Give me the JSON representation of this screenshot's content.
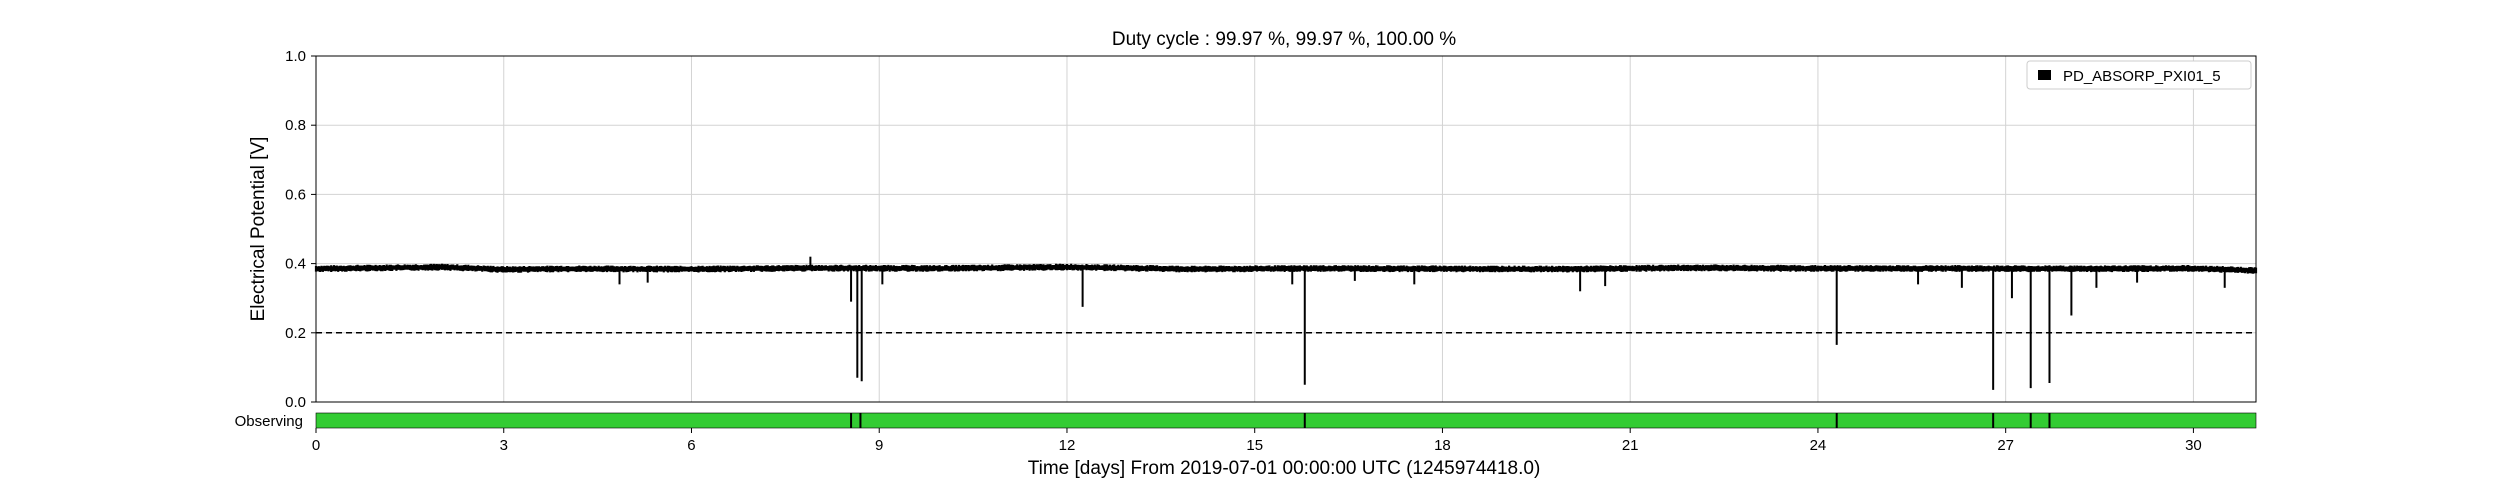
{
  "chart_data": {
    "type": "line",
    "title": "Duty cycle : 99.97 %, 99.97 %, 100.00 %",
    "xlabel": "Time [days] From 2019-07-01 00:00:00 UTC (1245974418.0)",
    "ylabel": "Electrical Potential [V]",
    "xlim": [
      0,
      31
    ],
    "ylim": [
      0,
      1.0
    ],
    "xticks": [
      0,
      3,
      6,
      9,
      12,
      15,
      18,
      21,
      24,
      27,
      30
    ],
    "yticks": [
      0.0,
      0.2,
      0.4,
      0.6,
      0.8,
      1.0
    ],
    "xtick_labels": [
      "0",
      "3",
      "6",
      "9",
      "12",
      "15",
      "18",
      "21",
      "24",
      "27",
      "30"
    ],
    "ytick_labels": [
      "0.0",
      "0.2",
      "0.4",
      "0.6",
      "0.8",
      "1.0"
    ],
    "grid": true,
    "legend_position": "top-right",
    "series": [
      {
        "name": "PD_ABSORP_PXI01_5",
        "color": "#000000",
        "baseline": {
          "x": [
            0,
            2,
            3,
            4,
            6,
            8,
            10,
            12,
            14,
            16,
            18,
            20,
            22,
            24,
            26,
            28,
            30,
            31
          ],
          "y": [
            0.385,
            0.39,
            0.383,
            0.385,
            0.384,
            0.387,
            0.386,
            0.39,
            0.384,
            0.386,
            0.385,
            0.384,
            0.388,
            0.386,
            0.386,
            0.385,
            0.386,
            0.38
          ]
        },
        "dips": [
          {
            "x": 4.85,
            "y": 0.34
          },
          {
            "x": 5.3,
            "y": 0.345
          },
          {
            "x": 8.55,
            "y": 0.29
          },
          {
            "x": 8.65,
            "y": 0.07
          },
          {
            "x": 8.72,
            "y": 0.06
          },
          {
            "x": 9.05,
            "y": 0.34
          },
          {
            "x": 12.25,
            "y": 0.275
          },
          {
            "x": 15.6,
            "y": 0.34
          },
          {
            "x": 15.8,
            "y": 0.05
          },
          {
            "x": 16.6,
            "y": 0.35
          },
          {
            "x": 17.55,
            "y": 0.34
          },
          {
            "x": 20.2,
            "y": 0.32
          },
          {
            "x": 20.6,
            "y": 0.335
          },
          {
            "x": 24.3,
            "y": 0.165
          },
          {
            "x": 25.6,
            "y": 0.34
          },
          {
            "x": 26.3,
            "y": 0.33
          },
          {
            "x": 26.8,
            "y": 0.035
          },
          {
            "x": 27.1,
            "y": 0.3
          },
          {
            "x": 27.4,
            "y": 0.04
          },
          {
            "x": 27.7,
            "y": 0.055
          },
          {
            "x": 28.05,
            "y": 0.25
          },
          {
            "x": 28.45,
            "y": 0.33
          },
          {
            "x": 29.1,
            "y": 0.345
          },
          {
            "x": 30.5,
            "y": 0.33
          }
        ],
        "spikes": [
          {
            "x": 7.9,
            "y": 0.42
          }
        ]
      }
    ],
    "reference_line": {
      "y": 0.2,
      "style": "dashed",
      "color": "#000000"
    },
    "state_bar": {
      "label": "Observing",
      "color": "#33cc33",
      "segments": [
        [
          0,
          31
        ]
      ],
      "gap_marks": [
        8.55,
        8.7,
        15.8,
        24.3,
        26.8,
        27.4,
        27.7
      ]
    }
  }
}
